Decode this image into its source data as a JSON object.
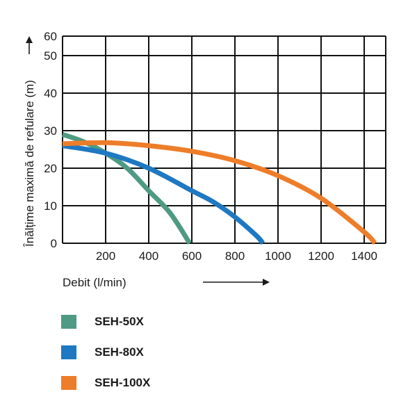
{
  "chart_data": {
    "type": "line",
    "xlabel": "Debit (l/min)",
    "ylabel": "Înălțime maximă de refulare (m)",
    "xlim": [
      0,
      1500
    ],
    "ylim": [
      0,
      60
    ],
    "x_ticks": [
      "200",
      "400",
      "600",
      "800",
      "1000",
      "1200",
      "1400"
    ],
    "x_tick_values": [
      200,
      400,
      600,
      800,
      1000,
      1200,
      1400
    ],
    "y_ticks": [
      "0",
      "10",
      "20",
      "30",
      "40",
      "50",
      "60"
    ],
    "y_tick_values": [
      0,
      10,
      20,
      30,
      40,
      50,
      60
    ],
    "grid": true,
    "legend_position": "bottom-left",
    "series": [
      {
        "name": "SEH-50X",
        "color": "#4e9a83",
        "x": [
          0,
          100,
          200,
          300,
          400,
          500,
          590
        ],
        "y": [
          29,
          27,
          24,
          20,
          14,
          8,
          0
        ]
      },
      {
        "name": "SEH-80X",
        "color": "#1e78c2",
        "x": [
          0,
          200,
          400,
          600,
          700,
          800,
          900,
          930
        ],
        "y": [
          26,
          24,
          20,
          14,
          11,
          7,
          2,
          0
        ]
      },
      {
        "name": "SEH-100X",
        "color": "#ee7d2a",
        "x": [
          0,
          200,
          400,
          600,
          800,
          1000,
          1200,
          1400,
          1450
        ],
        "y": [
          26.5,
          26.8,
          26,
          24.5,
          22,
          18,
          12,
          3,
          0
        ]
      }
    ]
  }
}
